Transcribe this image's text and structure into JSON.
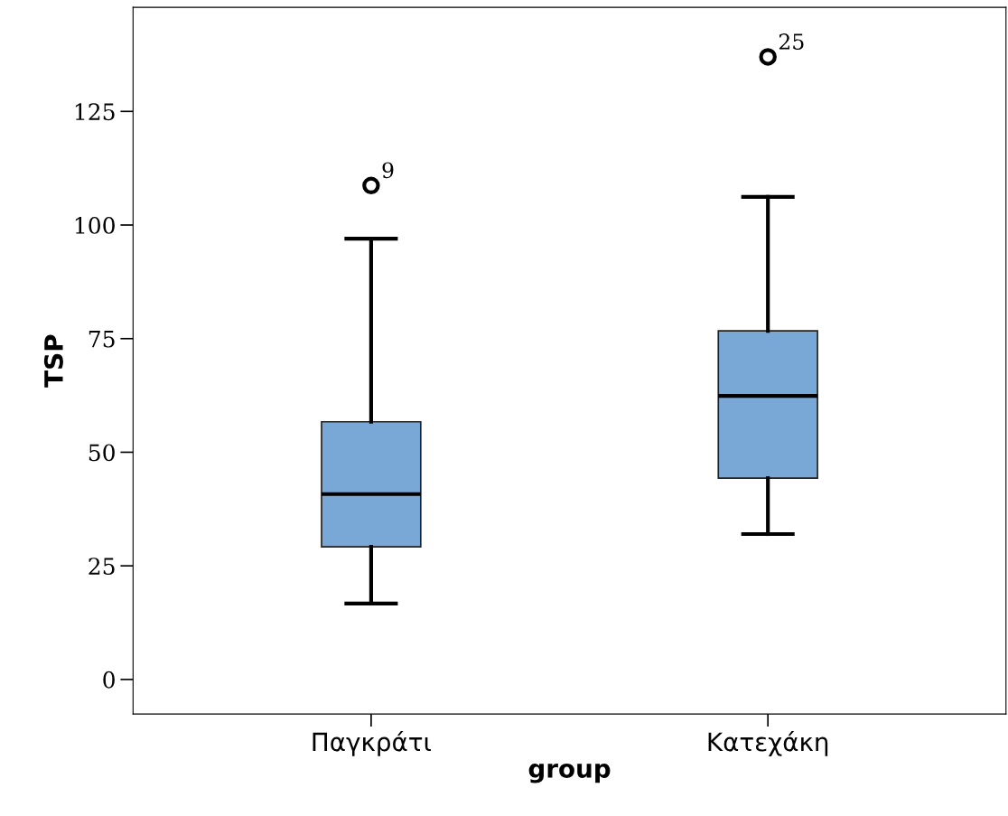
{
  "chart_data": {
    "type": "box",
    "xlabel": "group",
    "ylabel": "TSP",
    "categories": [
      "Παγκράτι",
      "Κατεχάκη"
    ],
    "boxes": [
      {
        "low": 16.7,
        "q1": 29.2,
        "median": 40.8,
        "q3": 56.7,
        "high": 97.0,
        "outliers": [
          108.7
        ]
      },
      {
        "low": 32.0,
        "q1": 44.3,
        "median": 62.4,
        "q3": 76.7,
        "high": 106.2,
        "outliers": [
          137.0
        ]
      }
    ],
    "color": "#79a7d6",
    "ylim": [
      -7.6,
      147.9
    ],
    "yticks": [
      0,
      25,
      50,
      75,
      100,
      125
    ],
    "grid": false,
    "annotations": [
      "9",
      "25"
    ]
  }
}
